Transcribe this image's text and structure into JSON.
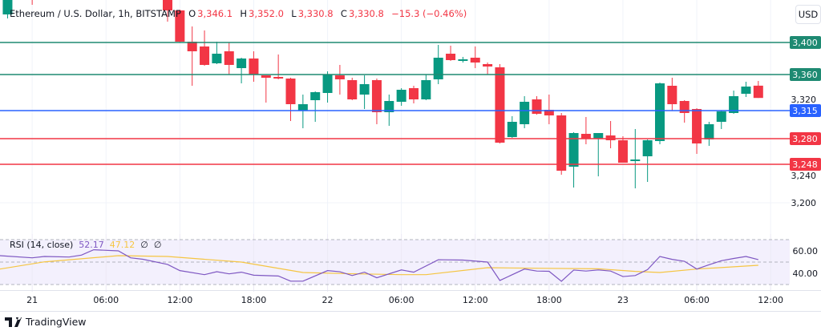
{
  "header": {
    "symbol": "Ethereum / U.S. Dollar, 1h, BITSTAMP",
    "o_label": "O",
    "o_value": "3,346.1",
    "h_label": "H",
    "h_value": "3,352.0",
    "l_label": "L",
    "l_value": "3,330.8",
    "c_label": "C",
    "c_value": "3,330.8",
    "change": "−15.3 (−0.46%)"
  },
  "currency_button": "USD",
  "rsi_legend": {
    "label": "RSI (14, close)",
    "rsi_value": "52.17",
    "ma_value": "47.12",
    "extra1": "∅",
    "extra2": "∅"
  },
  "brand": "TradingView",
  "colors": {
    "up": "#089981",
    "down": "#f23645",
    "support_blue": "#2962ff",
    "rsi": "#7e57c2",
    "rsi_ma": "#f5c542"
  },
  "chart_data": [
    {
      "type": "candlestick",
      "title": "Ethereum / U.S. Dollar, 1h, BITSTAMP",
      "x_unit": "hourly bar index (0 = 11:00 on 21)",
      "ylim": [
        3180,
        3453
      ],
      "y_ticks": [
        "3,320",
        "3,240",
        "3,200"
      ],
      "y_tick_values": [
        3320,
        3240,
        3200
      ],
      "x_ticks": [
        {
          "label": "21",
          "bar": -11
        },
        {
          "label": "06:00",
          "bar": -5
        },
        {
          "label": "12:00",
          "bar": 1
        },
        {
          "label": "18:00",
          "bar": 7
        },
        {
          "label": "22",
          "bar": 13
        },
        {
          "label": "06:00",
          "bar": 19
        },
        {
          "label": "12:00",
          "bar": 25
        },
        {
          "label": "18:00",
          "bar": 31
        },
        {
          "label": "23",
          "bar": 37
        },
        {
          "label": "06:00",
          "bar": 43
        },
        {
          "label": "12:00",
          "bar": 49
        }
      ],
      "price_lines": [
        {
          "label": "3,400",
          "value": 3400,
          "color": "#1e8a72"
        },
        {
          "label": "3,360",
          "value": 3360,
          "color": "#1e8a72"
        },
        {
          "label": "3,315",
          "value": 3315,
          "color": "#2962ff"
        },
        {
          "label": "3,280",
          "value": 3280,
          "color": "#f23645"
        },
        {
          "label": "3,248",
          "value": 3248,
          "color": "#f23645"
        }
      ],
      "candles": [
        [
          -13,
          3435,
          3470,
          3430,
          3455
        ],
        [
          -11,
          3470,
          3480,
          3447,
          3460
        ],
        [
          0,
          3455,
          3460,
          3426,
          3440
        ],
        [
          1,
          3440,
          3441,
          3400,
          3401
        ],
        [
          2,
          3401,
          3420,
          3346,
          3389
        ],
        [
          3,
          3395,
          3415,
          3371,
          3372
        ],
        [
          4,
          3374,
          3401,
          3373,
          3386
        ],
        [
          5,
          3389,
          3400,
          3360,
          3372
        ],
        [
          6,
          3368,
          3381,
          3349,
          3380
        ],
        [
          7,
          3380,
          3389,
          3351,
          3360
        ],
        [
          8,
          3359,
          3359,
          3325,
          3356
        ],
        [
          9,
          3357,
          3385,
          3354,
          3355
        ],
        [
          10,
          3355,
          3356,
          3302,
          3323
        ],
        [
          11,
          3315,
          3335,
          3293,
          3323
        ],
        [
          12,
          3328,
          3339,
          3301,
          3338
        ],
        [
          13,
          3337,
          3364,
          3325,
          3360
        ],
        [
          14,
          3359,
          3372,
          3335,
          3354
        ],
        [
          15,
          3353,
          3356,
          3328,
          3329
        ],
        [
          16,
          3335,
          3359,
          3317,
          3348
        ],
        [
          17,
          3353,
          3355,
          3298,
          3313
        ],
        [
          18,
          3313,
          3335,
          3296,
          3327
        ],
        [
          19,
          3326,
          3343,
          3321,
          3341
        ],
        [
          20,
          3343,
          3346,
          3324,
          3329
        ],
        [
          21,
          3329,
          3360,
          3328,
          3353
        ],
        [
          22,
          3354,
          3397,
          3348,
          3381
        ],
        [
          23,
          3386,
          3396,
          3377,
          3378
        ],
        [
          24,
          3378,
          3382,
          3375,
          3379
        ],
        [
          25,
          3381,
          3395,
          3368,
          3375
        ],
        [
          26,
          3373,
          3375,
          3360,
          3370
        ],
        [
          27,
          3369,
          3373,
          3274,
          3275
        ],
        [
          28,
          3282,
          3308,
          3281,
          3301
        ],
        [
          29,
          3298,
          3333,
          3293,
          3326
        ],
        [
          30,
          3329,
          3333,
          3310,
          3311
        ],
        [
          31,
          3316,
          3335,
          3298,
          3309
        ],
        [
          32,
          3309,
          3312,
          3235,
          3240
        ],
        [
          33,
          3245,
          3288,
          3219,
          3287
        ],
        [
          34,
          3286,
          3307,
          3273,
          3280
        ],
        [
          35,
          3280,
          3287,
          3233,
          3287
        ],
        [
          36,
          3284,
          3302,
          3268,
          3278
        ],
        [
          37,
          3278,
          3283,
          3250,
          3250
        ],
        [
          38,
          3252,
          3292,
          3218,
          3254
        ],
        [
          39,
          3258,
          3279,
          3226,
          3278
        ],
        [
          40,
          3277,
          3350,
          3273,
          3349
        ],
        [
          41,
          3346,
          3356,
          3315,
          3323
        ],
        [
          42,
          3327,
          3328,
          3300,
          3312
        ],
        [
          43,
          3317,
          3318,
          3261,
          3274
        ],
        [
          44,
          3279,
          3301,
          3271,
          3298
        ],
        [
          45,
          3301,
          3315,
          3292,
          3314
        ],
        [
          46,
          3312,
          3340,
          3311,
          3333
        ],
        [
          47,
          3336,
          3351,
          3332,
          3345
        ],
        [
          48,
          3346.1,
          3352,
          3330.8,
          3330.8
        ]
      ],
      "candle_fields": [
        "bar",
        "open",
        "high",
        "low",
        "close"
      ]
    },
    {
      "type": "line",
      "title": "RSI (14, close)",
      "ylim": [
        28,
        72
      ],
      "y_ticks": [
        "60.00",
        "40.00"
      ],
      "y_tick_values": [
        60,
        40
      ],
      "bands": [
        70,
        50,
        30
      ],
      "series": [
        {
          "name": "RSI",
          "color": "#7e57c2",
          "points": [
            [
              -14,
              55.7
            ],
            [
              -11,
              53.8
            ],
            [
              -10,
              55
            ],
            [
              -8,
              54.5
            ],
            [
              -7,
              56.2
            ],
            [
              -6,
              61
            ],
            [
              -4,
              60
            ],
            [
              -3,
              53.8
            ],
            [
              -2,
              52.5
            ],
            [
              0,
              47.9
            ],
            [
              1,
              42.4
            ],
            [
              3,
              38.8
            ],
            [
              4,
              41.4
            ],
            [
              5,
              39.5
            ],
            [
              6,
              41
            ],
            [
              7,
              38.3
            ],
            [
              9,
              37.6
            ],
            [
              10,
              33
            ],
            [
              11,
              33
            ],
            [
              13,
              42.4
            ],
            [
              14,
              41.4
            ],
            [
              15,
              38
            ],
            [
              16,
              41
            ],
            [
              17,
              36
            ],
            [
              19,
              43
            ],
            [
              20,
              41
            ],
            [
              22,
              52.1
            ],
            [
              24,
              51.8
            ],
            [
              26,
              50
            ],
            [
              27,
              33.6
            ],
            [
              29,
              43.8
            ],
            [
              30,
              42
            ],
            [
              31,
              41.8
            ],
            [
              32,
              32.9
            ],
            [
              33,
              42.9
            ],
            [
              34,
              42
            ],
            [
              35,
              43
            ],
            [
              36,
              42
            ],
            [
              37,
              37.1
            ],
            [
              38,
              38
            ],
            [
              39,
              43.3
            ],
            [
              40,
              55
            ],
            [
              41,
              52.4
            ],
            [
              42,
              50.7
            ],
            [
              43,
              43.8
            ],
            [
              44,
              47.6
            ],
            [
              45,
              51.2
            ],
            [
              46,
              53.2
            ],
            [
              47,
              55
            ],
            [
              48,
              52.17
            ]
          ]
        },
        {
          "name": "RSI-based MA",
          "color": "#f5c542",
          "points": [
            [
              -14,
              43.8
            ],
            [
              -10,
              50.2
            ],
            [
              -4,
              55.7
            ],
            [
              0,
              55
            ],
            [
              6,
              50
            ],
            [
              11,
              40.7
            ],
            [
              15,
              39.6
            ],
            [
              19,
              38.8
            ],
            [
              21,
              38.8
            ],
            [
              26,
              45
            ],
            [
              30,
              44.5
            ],
            [
              35,
              44
            ],
            [
              38,
              41.7
            ],
            [
              40,
              40.7
            ],
            [
              43,
              43.8
            ],
            [
              48,
              47.12
            ]
          ]
        }
      ]
    }
  ]
}
